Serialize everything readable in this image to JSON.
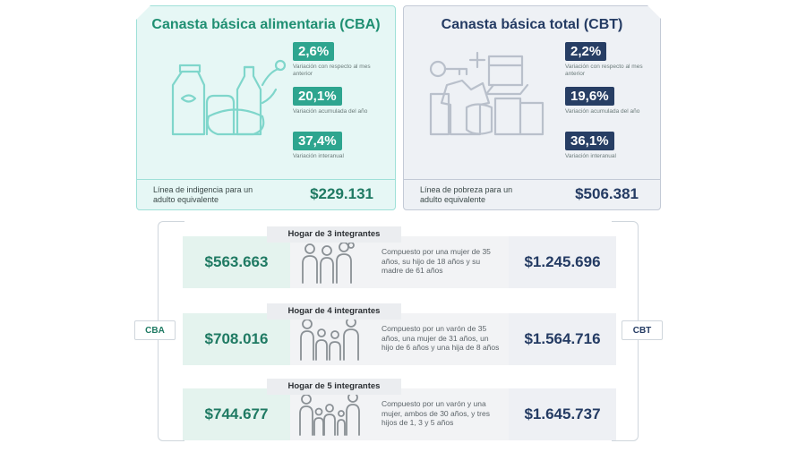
{
  "cba": {
    "title": "Canasta básica alimentaria (CBA)",
    "stats": [
      {
        "value": "2,6%",
        "label": "Variación con respecto al mes anterior"
      },
      {
        "value": "20,1%",
        "label": "Variación acumulada del año"
      },
      {
        "value": "37,4%",
        "label": "Variación interanual"
      }
    ],
    "line_label": "Línea de indigencia para un adulto equivalente",
    "line_value": "$229.131",
    "tag": "CBA",
    "accent": "#2ea58f"
  },
  "cbt": {
    "title": "Canasta básica total (CBT)",
    "stats": [
      {
        "value": "2,2%",
        "label": "Variación con respecto al mes anterior"
      },
      {
        "value": "19,6%",
        "label": "Variación acumulada del año"
      },
      {
        "value": "36,1%",
        "label": "Variación interanual"
      }
    ],
    "line_label": "Línea de pobreza para un adulto equivalente",
    "line_value": "$506.381",
    "tag": "CBT",
    "accent": "#273e64"
  },
  "households": [
    {
      "title": "Hogar de 3 integrantes",
      "description": "Compuesto por una mujer de 35 años, su hijo de 18 años y su madre de 61 años",
      "cba": "$563.663",
      "cbt": "$1.245.696"
    },
    {
      "title": "Hogar de 4 integrantes",
      "description": "Compuesto por un varón de 35 años, una mujer de 31 años, un hijo de 6 años y una hija de 8 años",
      "cba": "$708.016",
      "cbt": "$1.564.716"
    },
    {
      "title": "Hogar de 5 integrantes",
      "description": "Compuesto por un varón y una mujer, ambos de 30 años, y tres hijos de 1, 3 y 5 años",
      "cba": "$744.677",
      "cbt": "$1.645.737"
    }
  ]
}
